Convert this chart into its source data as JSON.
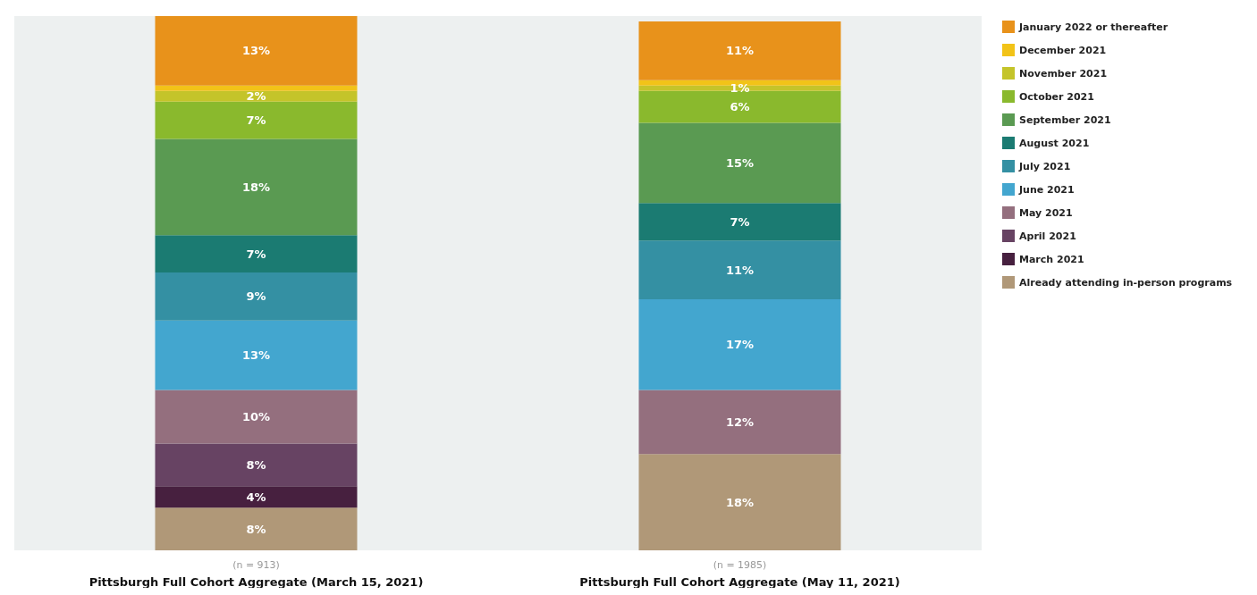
{
  "chart_data": {
    "type": "bar",
    "stacked": true,
    "legend": "right",
    "tick_labels": "x",
    "ylim": [
      0,
      100
    ],
    "categories": [
      "(n = 913)\nPittsburgh Full Cohort Aggregate (March 15, 2021)",
      "(n = 1985)\nPittsburgh Full Cohort Aggregate (May 11, 2021)"
    ],
    "series": [
      {
        "name": "Already attending in-person programs",
        "color": "#b09878",
        "values": [
          8,
          18
        ],
        "value_labels": [
          "8%",
          "18%"
        ]
      },
      {
        "name": "March 2021",
        "color": "#47203f",
        "values": [
          4,
          null
        ],
        "value_labels": [
          "4%",
          null
        ]
      },
      {
        "name": "April 2021",
        "color": "#674363",
        "values": [
          8,
          null
        ],
        "value_labels": [
          "8%",
          null
        ]
      },
      {
        "name": "May 2021",
        "color": "#946f7e",
        "values": [
          10,
          12
        ],
        "value_labels": [
          "10%",
          "12%"
        ]
      },
      {
        "name": "June 2021",
        "color": "#43a6cf",
        "values": [
          13,
          17
        ],
        "value_labels": [
          "13%",
          "17%"
        ]
      },
      {
        "name": "July 2021",
        "color": "#3490a3",
        "values": [
          9,
          11
        ],
        "value_labels": [
          "9%",
          "11%"
        ]
      },
      {
        "name": "August 2021",
        "color": "#1b7b72",
        "values": [
          7,
          7
        ],
        "value_labels": [
          "7%",
          "7%"
        ]
      },
      {
        "name": "September 2021",
        "color": "#5a9a52",
        "values": [
          18,
          15
        ],
        "value_labels": [
          "18%",
          "15%"
        ]
      },
      {
        "name": "October 2021",
        "color": "#8ab92d",
        "values": [
          7,
          6
        ],
        "value_labels": [
          "7%",
          "6%"
        ]
      },
      {
        "name": "November 2021",
        "color": "#c4c42a",
        "values": [
          2,
          1
        ],
        "value_labels": [
          "2%",
          "1%"
        ]
      },
      {
        "name": "December 2021",
        "color": "#f2c318",
        "values": [
          1,
          1
        ],
        "value_labels": [
          null,
          null
        ]
      },
      {
        "name": "January 2022 or thereafter",
        "color": "#e8921b",
        "values": [
          13,
          11
        ],
        "value_labels": [
          "13%",
          "11%"
        ]
      }
    ]
  }
}
